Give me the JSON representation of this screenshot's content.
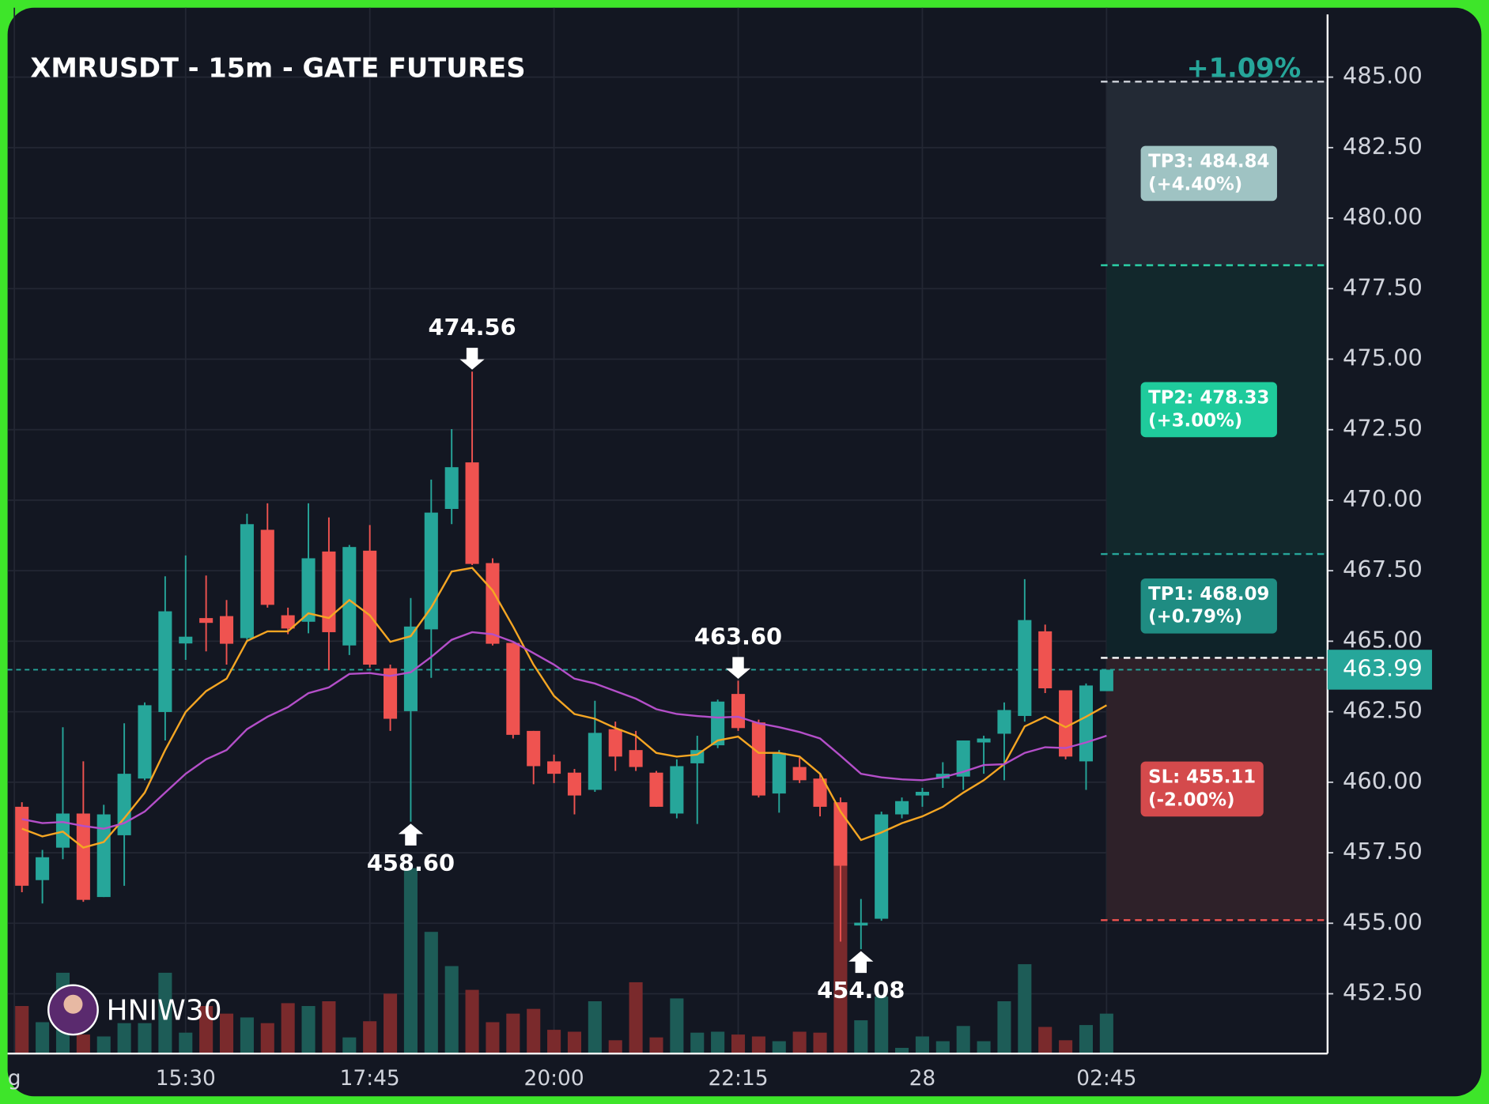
{
  "chart_data": {
    "type": "candlestick",
    "title": "XMRUSDT - 15m - GATE FUTURES",
    "change_label": "+1.09%",
    "watermark": "HNIW30",
    "up_color": "#26a69a",
    "down_color": "#ef5350",
    "volume_up_color": "#1d5c57",
    "volume_down_color": "#7a2a2c",
    "xlim": [
      -0.7,
      63.8
    ],
    "xticks": [
      {
        "value": -0.37,
        "label": "g"
      },
      {
        "value": 8,
        "label": "15:30"
      },
      {
        "value": 17,
        "label": "17:45"
      },
      {
        "value": 26,
        "label": "20:00"
      },
      {
        "value": 35,
        "label": "22:15"
      },
      {
        "value": 44,
        "label": "28"
      },
      {
        "value": 53,
        "label": "02:45"
      }
    ],
    "ylim": [
      450.38,
      487.46
    ],
    "yticks": [
      {
        "value": 452.5,
        "label": "452.50"
      },
      {
        "value": 455,
        "label": "455.00"
      },
      {
        "value": 457.5,
        "label": "457.50"
      },
      {
        "value": 460,
        "label": "460.00"
      },
      {
        "value": 462.5,
        "label": "462.50"
      },
      {
        "value": 465,
        "label": "465.00"
      },
      {
        "value": 467.5,
        "label": "467.50"
      },
      {
        "value": 470,
        "label": "470.00"
      },
      {
        "value": 472.5,
        "label": "472.50"
      },
      {
        "value": 475,
        "label": "475.00"
      },
      {
        "value": 477.5,
        "label": "477.50"
      },
      {
        "value": 480,
        "label": "480.00"
      },
      {
        "value": 482.5,
        "label": "482.50"
      },
      {
        "value": 485,
        "label": "485.00"
      }
    ],
    "grid": true,
    "candles": {
      "open": [
        459.13,
        456.53,
        457.68,
        458.89,
        455.93,
        458.12,
        460.13,
        462.49,
        464.92,
        465.82,
        465.89,
        465.11,
        468.95,
        465.92,
        465.69,
        468.18,
        464.85,
        468.21,
        464.04,
        462.52,
        465.42,
        469.69,
        471.34,
        467.77,
        464.94,
        461.82,
        460.74,
        460.34,
        459.73,
        461.88,
        461.14,
        460.34,
        458.89,
        460.67,
        461.31,
        463.13,
        462.12,
        459.6,
        460.54,
        460.13,
        459.29,
        454.92,
        455.16,
        458.86,
        459.53,
        460.13,
        460.2,
        461.41,
        461.72,
        462.35,
        465.35,
        463.26,
        460.74,
        463.23
      ],
      "high": [
        459.29,
        457.6,
        461.95,
        460.74,
        459.2,
        462.09,
        462.83,
        467.3,
        468.04,
        467.33,
        466.46,
        469.52,
        469.89,
        466.19,
        469.89,
        469.39,
        468.41,
        469.12,
        464.17,
        466.53,
        470.73,
        472.52,
        474.56,
        467.94,
        464.94,
        461.82,
        460.98,
        460.47,
        462.89,
        462.15,
        461.82,
        460.4,
        460.81,
        461.65,
        462.93,
        463.6,
        462.22,
        461.14,
        460.87,
        460.3,
        459.46,
        455.86,
        458.96,
        459.46,
        459.8,
        460.71,
        461.48,
        461.65,
        462.83,
        467.2,
        465.59,
        463.26,
        463.5,
        463.99
      ],
      "low": [
        456.1,
        455.7,
        457.27,
        455.76,
        455.93,
        456.33,
        460.07,
        461.48,
        464.34,
        464.64,
        464.17,
        465.05,
        466.19,
        465.25,
        465.28,
        463.97,
        464.51,
        464.07,
        461.82,
        458.6,
        463.7,
        469.15,
        467.7,
        464.85,
        461.55,
        459.93,
        459.97,
        458.86,
        459.66,
        460.4,
        460.4,
        459.13,
        458.72,
        458.52,
        461.21,
        461.82,
        459.46,
        458.92,
        459.97,
        458.79,
        454.35,
        454.08,
        455.09,
        458.72,
        459.13,
        459.8,
        459.73,
        460.3,
        460.07,
        462.15,
        463.16,
        460.81,
        459.73,
        463.23
      ],
      "close": [
        456.33,
        457.34,
        458.89,
        455.83,
        458.86,
        460.3,
        462.73,
        466.06,
        465.16,
        465.65,
        464.91,
        469.15,
        466.29,
        465.45,
        467.94,
        465.32,
        468.34,
        464.17,
        462.25,
        465.52,
        469.56,
        471.17,
        467.74,
        464.91,
        461.68,
        460.57,
        460.3,
        459.53,
        461.75,
        460.91,
        460.54,
        459.13,
        460.57,
        461.14,
        462.86,
        461.92,
        459.53,
        461.04,
        460.07,
        459.13,
        457.04,
        455.02,
        458.86,
        459.33,
        459.66,
        460.3,
        461.48,
        461.55,
        462.56,
        465.75,
        463.33,
        460.91,
        463.43,
        463.99
      ]
    },
    "volume": [
      50,
      33,
      85,
      20,
      18,
      32,
      32,
      85,
      22,
      50,
      42,
      38,
      32,
      53,
      50,
      55,
      17,
      34,
      63,
      195,
      128,
      92,
      67,
      33,
      42,
      47,
      25,
      23,
      55,
      14,
      75,
      17,
      58,
      22,
      23,
      20,
      18,
      13,
      23,
      22,
      198,
      35,
      60,
      6,
      18,
      13,
      29,
      13,
      55,
      94,
      28,
      14,
      30,
      42
    ],
    "moving_averages": [
      {
        "color": "#f5a623",
        "values": [
          458.35,
          458.08,
          458.25,
          457.68,
          457.88,
          458.72,
          459.63,
          461.14,
          462.49,
          463.23,
          463.67,
          465.01,
          465.35,
          465.35,
          465.99,
          465.82,
          466.46,
          465.92,
          464.98,
          465.18,
          466.19,
          467.47,
          467.6,
          466.8,
          465.52,
          464.17,
          463.06,
          462.42,
          462.25,
          461.92,
          461.65,
          461.04,
          460.91,
          460.98,
          461.48,
          461.62,
          461.04,
          461.04,
          460.91,
          460.3,
          458.96,
          457.95,
          458.22,
          458.55,
          458.79,
          459.13,
          459.63,
          460.07,
          460.64,
          461.98,
          462.32,
          461.95,
          462.32,
          462.73
        ]
      },
      {
        "color": "#b44fc9",
        "values": [
          458.69,
          458.55,
          458.59,
          458.45,
          458.35,
          458.55,
          458.96,
          459.63,
          460.3,
          460.81,
          461.14,
          461.88,
          462.32,
          462.66,
          463.16,
          463.36,
          463.84,
          463.87,
          463.77,
          463.9,
          464.44,
          465.05,
          465.32,
          465.25,
          464.98,
          464.58,
          464.17,
          463.67,
          463.5,
          463.23,
          462.96,
          462.59,
          462.42,
          462.35,
          462.29,
          462.32,
          462.09,
          461.95,
          461.78,
          461.55,
          460.94,
          460.3,
          460.17,
          460.1,
          460.07,
          460.17,
          460.37,
          460.61,
          460.64,
          461.04,
          461.24,
          461.21,
          461.41,
          461.65
        ]
      }
    ],
    "annotations": [
      {
        "candle": 22,
        "value": 474.56,
        "label": "474.56",
        "side": "above"
      },
      {
        "candle": 19,
        "value": 458.6,
        "label": "458.60",
        "side": "below"
      },
      {
        "candle": 35,
        "value": 463.6,
        "label": "463.60",
        "side": "above"
      },
      {
        "candle": 41,
        "value": 454.08,
        "label": "454.08",
        "side": "below"
      }
    ],
    "levels": [
      {
        "value": 484.84,
        "label": "TP3: 484.84",
        "sub": "(+4.40%)",
        "line_color": "#d0d4dc",
        "zone_color": "#232a35",
        "box_color": "#9fc3c3"
      },
      {
        "value": 478.33,
        "label": "TP2: 478.33",
        "sub": "(+3.00%)",
        "line_color": "#2bd1a8",
        "zone_color": "#12282c",
        "box_color": "#1fcb9c"
      },
      {
        "value": 468.09,
        "label": "TP1: 468.09",
        "sub": "(+0.79%)",
        "line_color": "#26a69a",
        "zone_color": "#0f2329",
        "box_color": "#1f8c82"
      },
      {
        "value": 464.41,
        "line_color": "#ffffff"
      },
      {
        "value": 455.11,
        "label": "SL: 455.11",
        "sub": "(-2.00%)",
        "line_color": "#ef5350",
        "zone_color": "#2e2129",
        "box_color": "#d44a4c"
      }
    ],
    "last_price": {
      "value": 463.99,
      "label": "463.99",
      "color": "#26a69a"
    }
  }
}
